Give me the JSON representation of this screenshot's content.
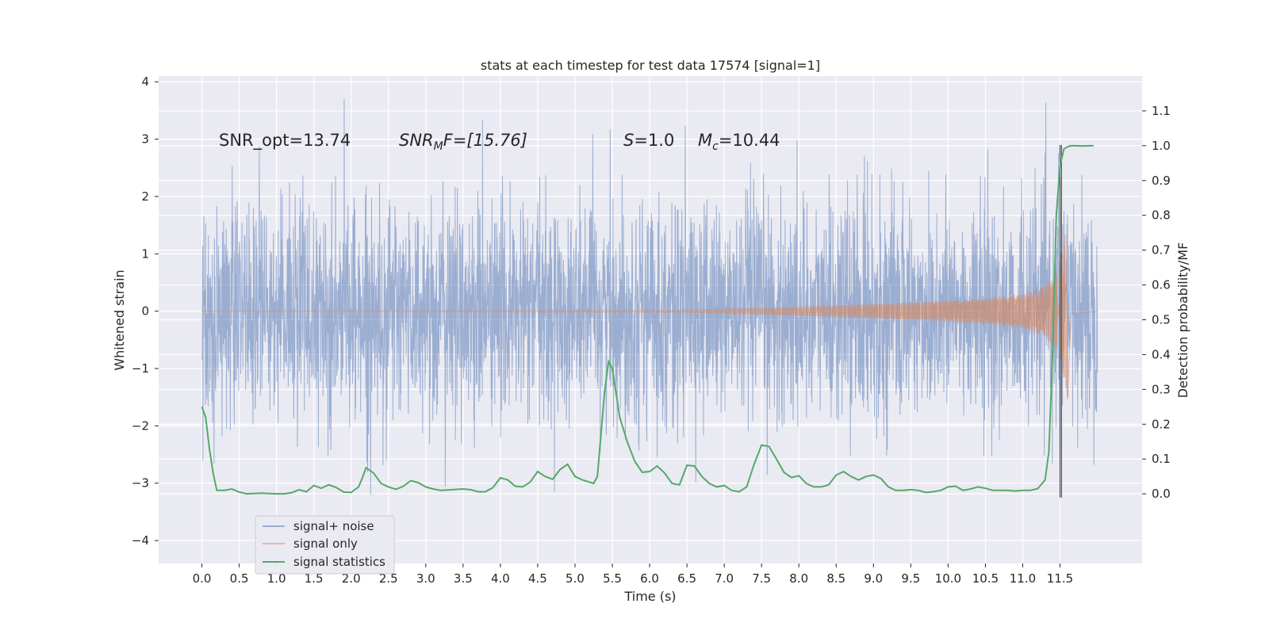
{
  "chart_data": {
    "type": "line",
    "title": "stats at each timestep for test data 17574 [signal=1]",
    "xlabel": "Time (s)",
    "ylabel_left": "Whitened strain",
    "ylabel_right": "Detection probability/MF",
    "xlim": [
      -0.58,
      12.6
    ],
    "ylim_left": [
      -4.4,
      4.1
    ],
    "ylim_right": [
      -0.2,
      1.2
    ],
    "xticks": [
      0.0,
      0.5,
      1.0,
      1.5,
      2.0,
      2.5,
      3.0,
      3.5,
      4.0,
      4.5,
      5.0,
      5.5,
      6.0,
      6.5,
      7.0,
      7.5,
      8.0,
      8.5,
      9.0,
      9.5,
      10.0,
      10.5,
      11.0,
      11.5
    ],
    "xtick_labels": [
      "0.0",
      "0.5",
      "1.0",
      "1.5",
      "2.0",
      "2.5",
      "3.0",
      "3.5",
      "4.0",
      "4.5",
      "5.0",
      "5.5",
      "6.0",
      "6.5",
      "7.0",
      "7.5",
      "8.0",
      "8.5",
      "9.0",
      "9.5",
      "10.0",
      "10.5",
      "11.0",
      "11.5"
    ],
    "yticks_left": [
      4,
      3,
      2,
      1,
      0,
      -1,
      -2,
      -3,
      -4
    ],
    "ytick_labels_left": [
      "4",
      "3",
      "2",
      "1",
      "0",
      "−1",
      "−2",
      "−3",
      "−4"
    ],
    "yticks_right": [
      1.1,
      1.0,
      0.9,
      0.8,
      0.7,
      0.6,
      0.5,
      0.4,
      0.3,
      0.2,
      0.1,
      0.0
    ],
    "ytick_labels_right": [
      "1.1",
      "1.0",
      "0.9",
      "0.8",
      "0.7",
      "0.6",
      "0.5",
      "0.4",
      "0.3",
      "0.2",
      "0.1",
      "0.0"
    ],
    "grid": true,
    "legend_position": "lower-left",
    "annotations": {
      "snr_opt": "SNR_opt=13.74",
      "snr_mf_base": "SNR",
      "snr_mf_sub": "M",
      "snr_mf_tail": "F=[15.76]",
      "s_var": "S",
      "s_val": "=1.0",
      "mc_var": "M",
      "mc_sub": "c",
      "mc_val": "=10.44"
    },
    "series": [
      {
        "name": "signal+ noise",
        "color": "#4c72b0",
        "axis": "left",
        "duration": 12.0,
        "amplitude_sd": 1.0,
        "range_observed": [
          -4.08,
          3.7
        ]
      },
      {
        "name": "signal only",
        "color": "#dd8452",
        "axis": "left",
        "merger_time": 11.6,
        "envelope": {
          "t": [
            0.0,
            6.5,
            7.5,
            8.5,
            9.5,
            10.5,
            11.0,
            11.3,
            11.5,
            11.6,
            11.65,
            12.0
          ],
          "a": [
            0.005,
            0.02,
            0.06,
            0.1,
            0.15,
            0.22,
            0.3,
            0.45,
            0.75,
            1.6,
            0.05,
            0.0
          ]
        }
      },
      {
        "name": "signal statistics",
        "color": "#55a868",
        "axis": "right",
        "x": [
          0.0,
          0.05,
          0.1,
          0.15,
          0.2,
          0.3,
          0.4,
          0.5,
          0.6,
          0.8,
          1.0,
          1.1,
          1.2,
          1.3,
          1.4,
          1.5,
          1.6,
          1.7,
          1.8,
          1.9,
          2.0,
          2.1,
          2.15,
          2.2,
          2.3,
          2.4,
          2.5,
          2.6,
          2.7,
          2.8,
          2.9,
          3.0,
          3.1,
          3.2,
          3.3,
          3.5,
          3.6,
          3.7,
          3.8,
          3.9,
          4.0,
          4.1,
          4.2,
          4.3,
          4.4,
          4.5,
          4.6,
          4.7,
          4.8,
          4.9,
          5.0,
          5.1,
          5.2,
          5.25,
          5.3,
          5.4,
          5.45,
          5.5,
          5.6,
          5.7,
          5.8,
          5.9,
          6.0,
          6.1,
          6.2,
          6.3,
          6.4,
          6.5,
          6.6,
          6.7,
          6.8,
          6.9,
          7.0,
          7.1,
          7.2,
          7.3,
          7.4,
          7.5,
          7.6,
          7.7,
          7.8,
          7.9,
          8.0,
          8.1,
          8.2,
          8.3,
          8.4,
          8.5,
          8.6,
          8.7,
          8.8,
          8.9,
          9.0,
          9.1,
          9.2,
          9.3,
          9.4,
          9.5,
          9.6,
          9.7,
          9.8,
          9.9,
          10.0,
          10.1,
          10.2,
          10.3,
          10.4,
          10.5,
          10.6,
          10.7,
          10.8,
          10.9,
          11.0,
          11.1,
          11.2,
          11.3,
          11.35,
          11.4,
          11.45,
          11.5,
          11.55,
          11.6,
          11.65,
          11.7,
          11.8,
          11.9,
          11.95
        ],
        "y": [
          0.25,
          0.22,
          0.13,
          0.06,
          0.01,
          0.01,
          0.014,
          0.005,
          0.0,
          0.002,
          0.0,
          0.0,
          0.003,
          0.012,
          0.006,
          0.024,
          0.016,
          0.026,
          0.018,
          0.005,
          0.004,
          0.02,
          0.045,
          0.075,
          0.06,
          0.03,
          0.02,
          0.013,
          0.022,
          0.038,
          0.032,
          0.02,
          0.014,
          0.01,
          0.011,
          0.014,
          0.012,
          0.006,
          0.006,
          0.018,
          0.046,
          0.04,
          0.022,
          0.02,
          0.034,
          0.064,
          0.05,
          0.042,
          0.07,
          0.085,
          0.05,
          0.04,
          0.033,
          0.03,
          0.05,
          0.3,
          0.38,
          0.36,
          0.22,
          0.15,
          0.094,
          0.062,
          0.064,
          0.08,
          0.06,
          0.03,
          0.026,
          0.082,
          0.08,
          0.05,
          0.03,
          0.02,
          0.024,
          0.01,
          0.006,
          0.02,
          0.085,
          0.14,
          0.136,
          0.1,
          0.062,
          0.047,
          0.052,
          0.03,
          0.02,
          0.02,
          0.026,
          0.054,
          0.064,
          0.05,
          0.04,
          0.05,
          0.054,
          0.044,
          0.02,
          0.01,
          0.01,
          0.012,
          0.01,
          0.004,
          0.006,
          0.01,
          0.02,
          0.022,
          0.01,
          0.014,
          0.02,
          0.016,
          0.01,
          0.01,
          0.01,
          0.008,
          0.01,
          0.01,
          0.015,
          0.04,
          0.12,
          0.4,
          0.8,
          0.94,
          0.99,
          0.997,
          1.0,
          1.0,
          0.999,
          1.0,
          1.0
        ]
      }
    ],
    "vertical_markers": [
      11.5,
      11.52
    ]
  }
}
